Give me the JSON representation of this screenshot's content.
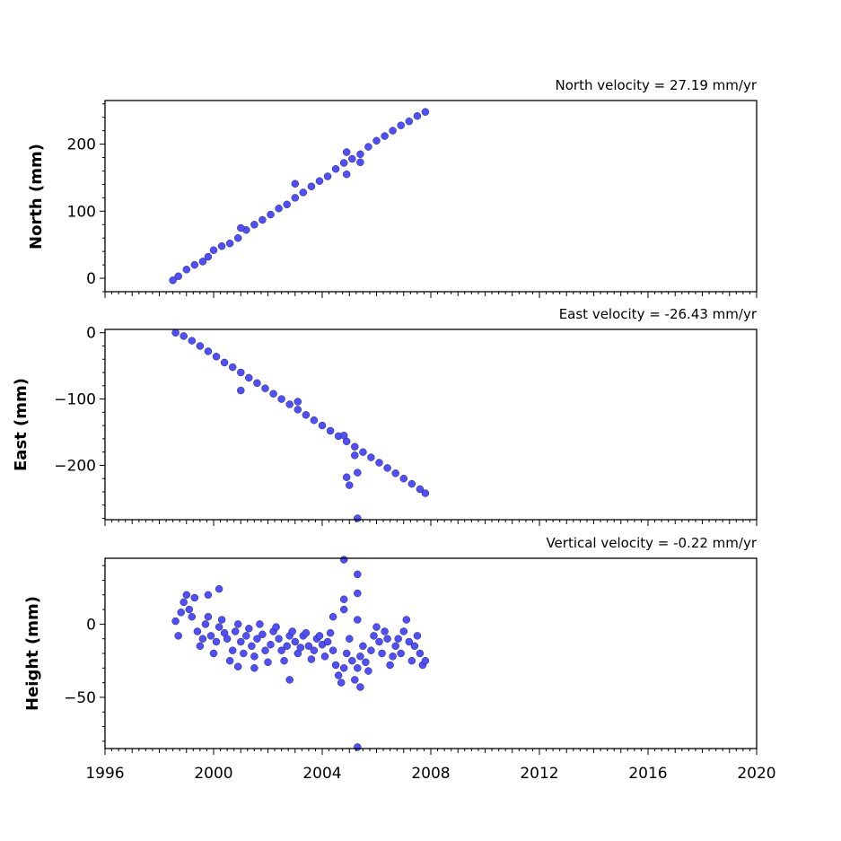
{
  "chart_data": [
    {
      "type": "scatter",
      "title": "North velocity = 27.19 mm/yr",
      "ylabel": "North (mm)",
      "xlim": [
        1996,
        2020
      ],
      "ylim": [
        -20,
        265
      ],
      "yticks": [
        0,
        100,
        200
      ],
      "ytick_labels": [
        "0",
        "100",
        "200"
      ],
      "series": [
        {
          "color": "#4f4fff",
          "points": [
            [
              1998.5,
              -3
            ],
            [
              1998.7,
              3
            ],
            [
              1999.0,
              13
            ],
            [
              1999.3,
              20
            ],
            [
              1999.6,
              25
            ],
            [
              1999.8,
              32
            ],
            [
              2000.0,
              42
            ],
            [
              2000.3,
              48
            ],
            [
              2000.6,
              52
            ],
            [
              2000.9,
              60
            ],
            [
              2001.2,
              72
            ],
            [
              2001.5,
              80
            ],
            [
              2001.8,
              87
            ],
            [
              2002.1,
              95
            ],
            [
              2002.4,
              104
            ],
            [
              2002.7,
              110
            ],
            [
              2003.0,
              120
            ],
            [
              2003.3,
              128
            ],
            [
              2003.6,
              137
            ],
            [
              2003.9,
              145
            ],
            [
              2004.2,
              152
            ],
            [
              2004.5,
              163
            ],
            [
              2004.8,
              172
            ],
            [
              2005.1,
              178
            ],
            [
              2005.4,
              185
            ],
            [
              2005.7,
              196
            ],
            [
              2006.0,
              205
            ],
            [
              2006.3,
              212
            ],
            [
              2006.6,
              220
            ],
            [
              2006.9,
              228
            ],
            [
              2007.2,
              234
            ],
            [
              2007.5,
              242
            ],
            [
              2007.8,
              248
            ],
            [
              2003.0,
              141
            ],
            [
              2004.9,
              155
            ],
            [
              2004.9,
              188
            ],
            [
              2005.4,
              173
            ],
            [
              2001.0,
              75
            ]
          ]
        }
      ]
    },
    {
      "type": "scatter",
      "title": "East velocity = -26.43 mm/yr",
      "ylabel": "East (mm)",
      "xlim": [
        1996,
        2020
      ],
      "ylim": [
        -282,
        5
      ],
      "yticks": [
        0,
        -100,
        -200
      ],
      "ytick_labels": [
        "0",
        "−100",
        "−200"
      ],
      "series": [
        {
          "color": "#4f4fff",
          "points": [
            [
              1998.6,
              0
            ],
            [
              1998.9,
              -5
            ],
            [
              1999.2,
              -12
            ],
            [
              1999.5,
              -20
            ],
            [
              1999.8,
              -28
            ],
            [
              2000.1,
              -36
            ],
            [
              2000.4,
              -45
            ],
            [
              2000.7,
              -52
            ],
            [
              2001.0,
              -60
            ],
            [
              2001.3,
              -68
            ],
            [
              2001.6,
              -76
            ],
            [
              2001.9,
              -84
            ],
            [
              2002.2,
              -92
            ],
            [
              2002.5,
              -100
            ],
            [
              2002.8,
              -108
            ],
            [
              2003.1,
              -116
            ],
            [
              2003.4,
              -124
            ],
            [
              2003.7,
              -132
            ],
            [
              2004.0,
              -140
            ],
            [
              2004.3,
              -148
            ],
            [
              2004.6,
              -156
            ],
            [
              2004.9,
              -164
            ],
            [
              2005.2,
              -172
            ],
            [
              2005.5,
              -180
            ],
            [
              2005.8,
              -188
            ],
            [
              2006.1,
              -196
            ],
            [
              2006.4,
              -204
            ],
            [
              2006.7,
              -212
            ],
            [
              2007.0,
              -220
            ],
            [
              2007.3,
              -228
            ],
            [
              2007.6,
              -236
            ],
            [
              2007.8,
              -242
            ],
            [
              2001.0,
              -87
            ],
            [
              2003.1,
              -104
            ],
            [
              2004.9,
              -218
            ],
            [
              2005.0,
              -230
            ],
            [
              2005.3,
              -211
            ],
            [
              2005.2,
              -185
            ],
            [
              2005.3,
              -280
            ],
            [
              2004.8,
              -155
            ]
          ]
        }
      ]
    },
    {
      "type": "scatter",
      "title": "Vertical velocity = -0.22 mm/yr",
      "ylabel": "Height (mm)",
      "xlim": [
        1996,
        2020
      ],
      "xticks": [
        1996,
        2000,
        2004,
        2008,
        2012,
        2016,
        2020
      ],
      "xtick_labels": [
        "1996",
        "2000",
        "2004",
        "2008",
        "2012",
        "2016",
        "2020"
      ],
      "ylim": [
        -85,
        45
      ],
      "yticks": [
        0,
        -50
      ],
      "ytick_labels": [
        "0",
        "−50"
      ],
      "series": [
        {
          "color": "#4f4fff",
          "points": [
            [
              1998.6,
              2
            ],
            [
              1998.7,
              -8
            ],
            [
              1998.8,
              8
            ],
            [
              1998.9,
              15
            ],
            [
              1999.0,
              20
            ],
            [
              1999.1,
              10
            ],
            [
              1999.2,
              5
            ],
            [
              1999.3,
              18
            ],
            [
              1999.4,
              -5
            ],
            [
              1999.5,
              -15
            ],
            [
              1999.6,
              -10
            ],
            [
              1999.7,
              0
            ],
            [
              1999.8,
              5
            ],
            [
              1999.9,
              -8
            ],
            [
              2000.0,
              -20
            ],
            [
              2000.1,
              -12
            ],
            [
              2000.2,
              -2
            ],
            [
              2000.3,
              3
            ],
            [
              2000.4,
              -6
            ],
            [
              2000.5,
              -10
            ],
            [
              2000.6,
              -25
            ],
            [
              2000.7,
              -18
            ],
            [
              2000.8,
              -5
            ],
            [
              2000.9,
              0
            ],
            [
              2001.0,
              -12
            ],
            [
              2001.1,
              -20
            ],
            [
              2001.2,
              -8
            ],
            [
              2001.3,
              -3
            ],
            [
              2001.4,
              -15
            ],
            [
              2001.5,
              -22
            ],
            [
              2001.6,
              -10
            ],
            [
              2001.7,
              0
            ],
            [
              2001.8,
              -7
            ],
            [
              2001.9,
              -18
            ],
            [
              2002.0,
              -26
            ],
            [
              2002.1,
              -14
            ],
            [
              2002.2,
              -5
            ],
            [
              2002.3,
              -2
            ],
            [
              2002.4,
              -10
            ],
            [
              2002.5,
              -18
            ],
            [
              2002.6,
              -25
            ],
            [
              2002.7,
              -15
            ],
            [
              2002.8,
              -8
            ],
            [
              2002.9,
              -5
            ],
            [
              2003.0,
              -12
            ],
            [
              2003.1,
              -20
            ],
            [
              2003.2,
              -16
            ],
            [
              2003.3,
              -8
            ],
            [
              2003.4,
              -6
            ],
            [
              2003.5,
              -15
            ],
            [
              2003.6,
              -24
            ],
            [
              2003.7,
              -18
            ],
            [
              2003.8,
              -10
            ],
            [
              2003.9,
              -8
            ],
            [
              2004.0,
              -14
            ],
            [
              2004.1,
              -22
            ],
            [
              2004.2,
              -12
            ],
            [
              2004.3,
              -6
            ],
            [
              2004.4,
              -18
            ],
            [
              2004.5,
              -28
            ],
            [
              2004.6,
              -35
            ],
            [
              2004.7,
              -40
            ],
            [
              2004.8,
              -30
            ],
            [
              2004.9,
              -20
            ],
            [
              2005.0,
              -10
            ],
            [
              2005.1,
              -25
            ],
            [
              2005.2,
              -38
            ],
            [
              2005.3,
              -30
            ],
            [
              2005.4,
              -22
            ],
            [
              2005.5,
              -15
            ],
            [
              2005.6,
              -26
            ],
            [
              2005.7,
              -32
            ],
            [
              2005.8,
              -18
            ],
            [
              2005.9,
              -8
            ],
            [
              2006.0,
              -2
            ],
            [
              2006.1,
              -12
            ],
            [
              2006.2,
              -20
            ],
            [
              2006.3,
              -5
            ],
            [
              2006.4,
              -10
            ],
            [
              2006.5,
              -28
            ],
            [
              2006.6,
              -22
            ],
            [
              2006.7,
              -15
            ],
            [
              2006.8,
              -10
            ],
            [
              2006.9,
              -20
            ],
            [
              2007.0,
              -5
            ],
            [
              2007.1,
              3
            ],
            [
              2007.2,
              -12
            ],
            [
              2007.3,
              -25
            ],
            [
              2007.4,
              -15
            ],
            [
              2007.5,
              -8
            ],
            [
              2007.6,
              -20
            ],
            [
              2007.7,
              -28
            ],
            [
              2007.8,
              -25
            ],
            [
              2000.2,
              24
            ],
            [
              1999.8,
              20
            ],
            [
              2004.8,
              44
            ],
            [
              2005.3,
              34
            ],
            [
              2005.3,
              21
            ],
            [
              2004.8,
              17
            ],
            [
              2004.8,
              10
            ],
            [
              2005.4,
              -43
            ],
            [
              2005.3,
              -84
            ],
            [
              2001.5,
              -30
            ],
            [
              2000.9,
              -29
            ],
            [
              2002.8,
              -38
            ],
            [
              2004.4,
              5
            ],
            [
              2005.3,
              3
            ]
          ]
        }
      ]
    }
  ]
}
